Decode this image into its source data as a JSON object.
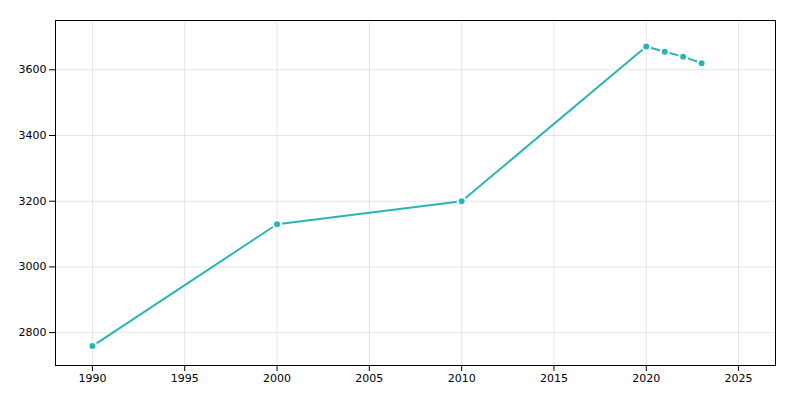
{
  "chart_data": {
    "type": "line",
    "x": [
      1990,
      2000,
      2010,
      2020,
      2021,
      2022,
      2023
    ],
    "values": [
      2759,
      3130,
      3200,
      3671,
      3655,
      3640,
      3620
    ],
    "color": "#2ab5b5",
    "marker": "circle",
    "xlim": [
      1988,
      2027
    ],
    "ylim": [
      2700,
      3750
    ],
    "xticks": [
      1990,
      1995,
      2000,
      2005,
      2010,
      2015,
      2020,
      2025
    ],
    "yticks": [
      2800,
      3000,
      3200,
      3400,
      3600
    ],
    "grid": true
  }
}
